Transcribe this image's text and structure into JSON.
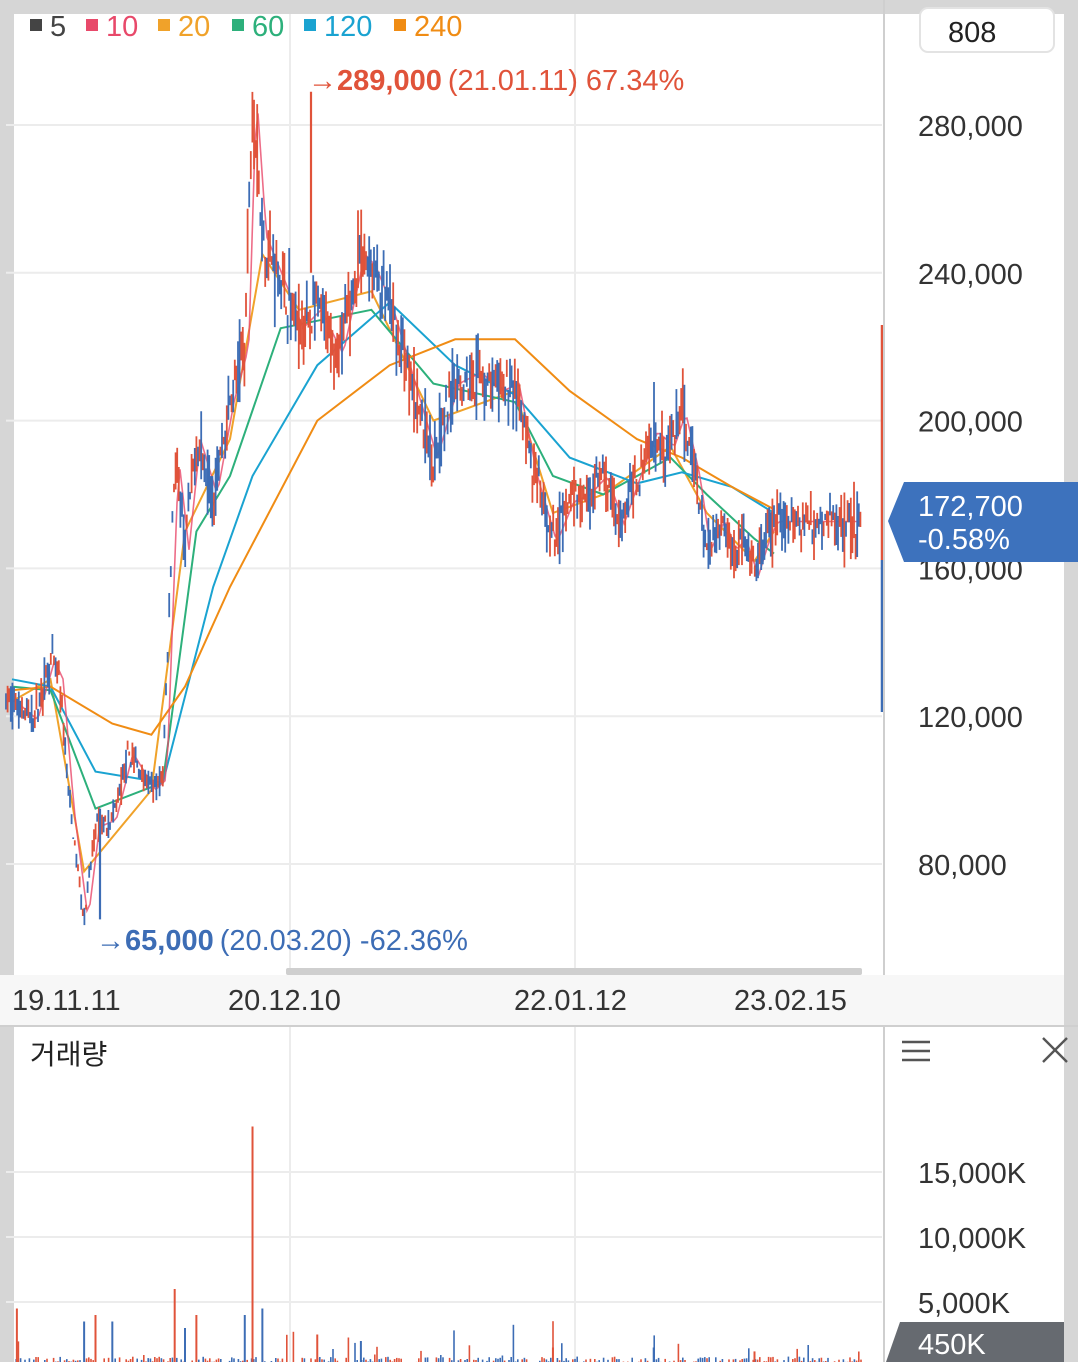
{
  "legend": [
    {
      "label": "5",
      "color": "#444444"
    },
    {
      "label": "10",
      "color": "#e8496a"
    },
    {
      "label": "20",
      "color": "#f0a22a"
    },
    {
      "label": "60",
      "color": "#2db07b"
    },
    {
      "label": "120",
      "color": "#1aa3d1"
    },
    {
      "label": "240",
      "color": "#f08c14"
    }
  ],
  "top_badge": "808",
  "high_annotation": {
    "arrow": "→",
    "price": "289,000",
    "date": "(21.01.11)",
    "pct": "67.34%",
    "color": "#e0533a"
  },
  "low_annotation": {
    "arrow": "→",
    "price": "65,000",
    "date": "(20.03.20)",
    "pct": "-62.36%",
    "color": "#3d6db5"
  },
  "current": {
    "price": "172,700",
    "change": "-0.58%",
    "color": "#3d72bd"
  },
  "volume_panel": {
    "title": "거래량",
    "menu_icon": "hamburger-menu-icon",
    "close_icon": "close-icon",
    "current_volume": "450K"
  },
  "colors": {
    "up": "#e0533a",
    "down": "#3d6db5",
    "grid": "#ececec",
    "axis_text": "#333333"
  },
  "chart_data": [
    {
      "type": "candlestick",
      "title": "",
      "x_tick_labels": [
        "19.11.11",
        "20.12.10",
        "22.01.12",
        "23.02.15"
      ],
      "y_tick_labels": [
        "280,000",
        "240,000",
        "200,000",
        "160,000",
        "120,000",
        "80,000"
      ],
      "y_ticks": [
        280000,
        240000,
        200000,
        160000,
        120000,
        80000
      ],
      "ylim": [
        53000,
        305000
      ],
      "price_path": [
        [
          "19.11.11",
          124000
        ],
        [
          "19.12.20",
          119000
        ],
        [
          "20.01.20",
          135000
        ],
        [
          "20.02.05",
          130000
        ],
        [
          "20.02.25",
          95000
        ],
        [
          "20.03.20",
          65000
        ],
        [
          "20.04.10",
          90000
        ],
        [
          "20.05.10",
          92000
        ],
        [
          "20.06.10",
          110000
        ],
        [
          "20.07.20",
          100000
        ],
        [
          "20.08.10",
          103000
        ],
        [
          "20.09.01",
          190000
        ],
        [
          "20.09.20",
          165000
        ],
        [
          "20.10.10",
          195000
        ],
        [
          "20.11.10",
          180000
        ],
        [
          "20.12.10",
          205000
        ],
        [
          "20.12.31",
          220000
        ],
        [
          "21.01.11",
          289000
        ],
        [
          "21.01.25",
          250000
        ],
        [
          "21.02.20",
          238000
        ],
        [
          "21.03.15",
          225000
        ],
        [
          "21.04.10",
          230000
        ],
        [
          "21.05.10",
          218000
        ],
        [
          "21.06.10",
          245000
        ],
        [
          "21.06.25",
          242000
        ],
        [
          "21.07.20",
          230000
        ],
        [
          "21.08.20",
          210000
        ],
        [
          "21.09.20",
          190000
        ],
        [
          "21.10.20",
          210000
        ],
        [
          "21.11.20",
          213000
        ],
        [
          "21.12.20",
          208000
        ],
        [
          "22.01.12",
          210000
        ],
        [
          "22.02.15",
          185000
        ],
        [
          "22.03.20",
          167000
        ],
        [
          "22.04.20",
          178000
        ],
        [
          "22.05.20",
          180000
        ],
        [
          "22.06.20",
          185000
        ],
        [
          "22.07.20",
          172000
        ],
        [
          "22.08.20",
          185000
        ],
        [
          "22.09.20",
          197000
        ],
        [
          "22.10.20",
          193000
        ],
        [
          "22.11.10",
          202000
        ],
        [
          "22.12.05",
          185000
        ],
        [
          "22.12.25",
          165000
        ],
        [
          "23.01.20",
          173000
        ],
        [
          "23.02.10",
          165000
        ],
        [
          "23.02.28",
          168000
        ],
        [
          "23.03.20",
          158000
        ],
        [
          "23.04.10",
          168000
        ],
        [
          "23.04.25",
          172700
        ]
      ],
      "moving_averages": [
        {
          "name": "20",
          "color": "#f0a22a",
          "values": [
            [
              "19.11.11",
              124000
            ],
            [
              "20.01.20",
              130000
            ],
            [
              "20.03.20",
              78000
            ],
            [
              "20.07.20",
              100000
            ],
            [
              "20.09.20",
              170000
            ],
            [
              "20.12.10",
              195000
            ],
            [
              "21.01.25",
              245000
            ],
            [
              "21.03.15",
              230000
            ],
            [
              "21.06.25",
              235000
            ],
            [
              "21.09.20",
              200000
            ],
            [
              "22.01.12",
              208000
            ],
            [
              "22.03.20",
              175000
            ],
            [
              "22.06.20",
              180000
            ],
            [
              "22.10.20",
              193000
            ],
            [
              "22.12.25",
              175000
            ],
            [
              "23.03.20",
              162000
            ],
            [
              "23.04.25",
              170000
            ]
          ]
        },
        {
          "name": "60",
          "color": "#2db07b",
          "values": [
            [
              "19.11.11",
              128000
            ],
            [
              "20.01.20",
              127000
            ],
            [
              "20.04.10",
              95000
            ],
            [
              "20.08.10",
              102000
            ],
            [
              "20.10.10",
              170000
            ],
            [
              "20.12.10",
              185000
            ],
            [
              "21.02.20",
              225000
            ],
            [
              "21.06.25",
              230000
            ],
            [
              "21.09.20",
              210000
            ],
            [
              "22.01.12",
              205000
            ],
            [
              "22.03.20",
              185000
            ],
            [
              "22.06.20",
              180000
            ],
            [
              "22.10.20",
              190000
            ],
            [
              "22.12.25",
              180000
            ],
            [
              "23.03.20",
              168000
            ],
            [
              "23.04.25",
              164000
            ]
          ]
        },
        {
          "name": "120",
          "color": "#1aa3d1",
          "values": [
            [
              "19.11.11",
              130000
            ],
            [
              "20.01.20",
              128000
            ],
            [
              "20.04.10",
              105000
            ],
            [
              "20.08.10",
              102000
            ],
            [
              "20.11.10",
              155000
            ],
            [
              "21.01.11",
              185000
            ],
            [
              "21.04.10",
              215000
            ],
            [
              "21.07.20",
              232000
            ],
            [
              "21.10.20",
              215000
            ],
            [
              "22.01.12",
              207000
            ],
            [
              "22.04.20",
              190000
            ],
            [
              "22.08.20",
              183000
            ],
            [
              "22.11.10",
              186000
            ],
            [
              "23.02.10",
              182000
            ],
            [
              "23.04.25",
              175000
            ]
          ]
        },
        {
          "name": "240",
          "color": "#f08c14",
          "values": [
            [
              "19.11.11",
              127000
            ],
            [
              "20.01.20",
              128000
            ],
            [
              "20.05.10",
              118000
            ],
            [
              "20.07.20",
              115000
            ],
            [
              "20.09.20",
              128000
            ],
            [
              "20.12.10",
              155000
            ],
            [
              "21.04.10",
              200000
            ],
            [
              "21.07.20",
              215000
            ],
            [
              "21.10.20",
              222000
            ],
            [
              "22.01.12",
              222000
            ],
            [
              "22.04.20",
              208000
            ],
            [
              "22.08.20",
              195000
            ],
            [
              "22.11.10",
              190000
            ],
            [
              "23.02.10",
              182000
            ],
            [
              "23.04.25",
              176000
            ]
          ]
        }
      ]
    },
    {
      "type": "bar",
      "title": "거래량",
      "y_tick_labels": [
        "15,000K",
        "10,000K",
        "5,000K"
      ],
      "y_ticks": [
        15000,
        10000,
        5000
      ],
      "ylim": [
        0,
        19000
      ],
      "unit": "K",
      "spikes": [
        [
          "19.11.20",
          4500
        ],
        [
          "20.03.20",
          3500
        ],
        [
          "20.04.10",
          4000
        ],
        [
          "20.05.10",
          3500
        ],
        [
          "20.09.01",
          6000
        ],
        [
          "20.09.20",
          3000
        ],
        [
          "20.10.10",
          4000
        ],
        [
          "20.12.31",
          4000
        ],
        [
          "21.01.11",
          18500
        ],
        [
          "21.01.25",
          4500
        ],
        [
          "21.04.10",
          2500
        ],
        [
          "21.06.10",
          2000
        ],
        [
          "22.03.20",
          1500
        ],
        [
          "22.09.20",
          1500
        ],
        [
          "23.03.20",
          1200
        ]
      ]
    }
  ]
}
